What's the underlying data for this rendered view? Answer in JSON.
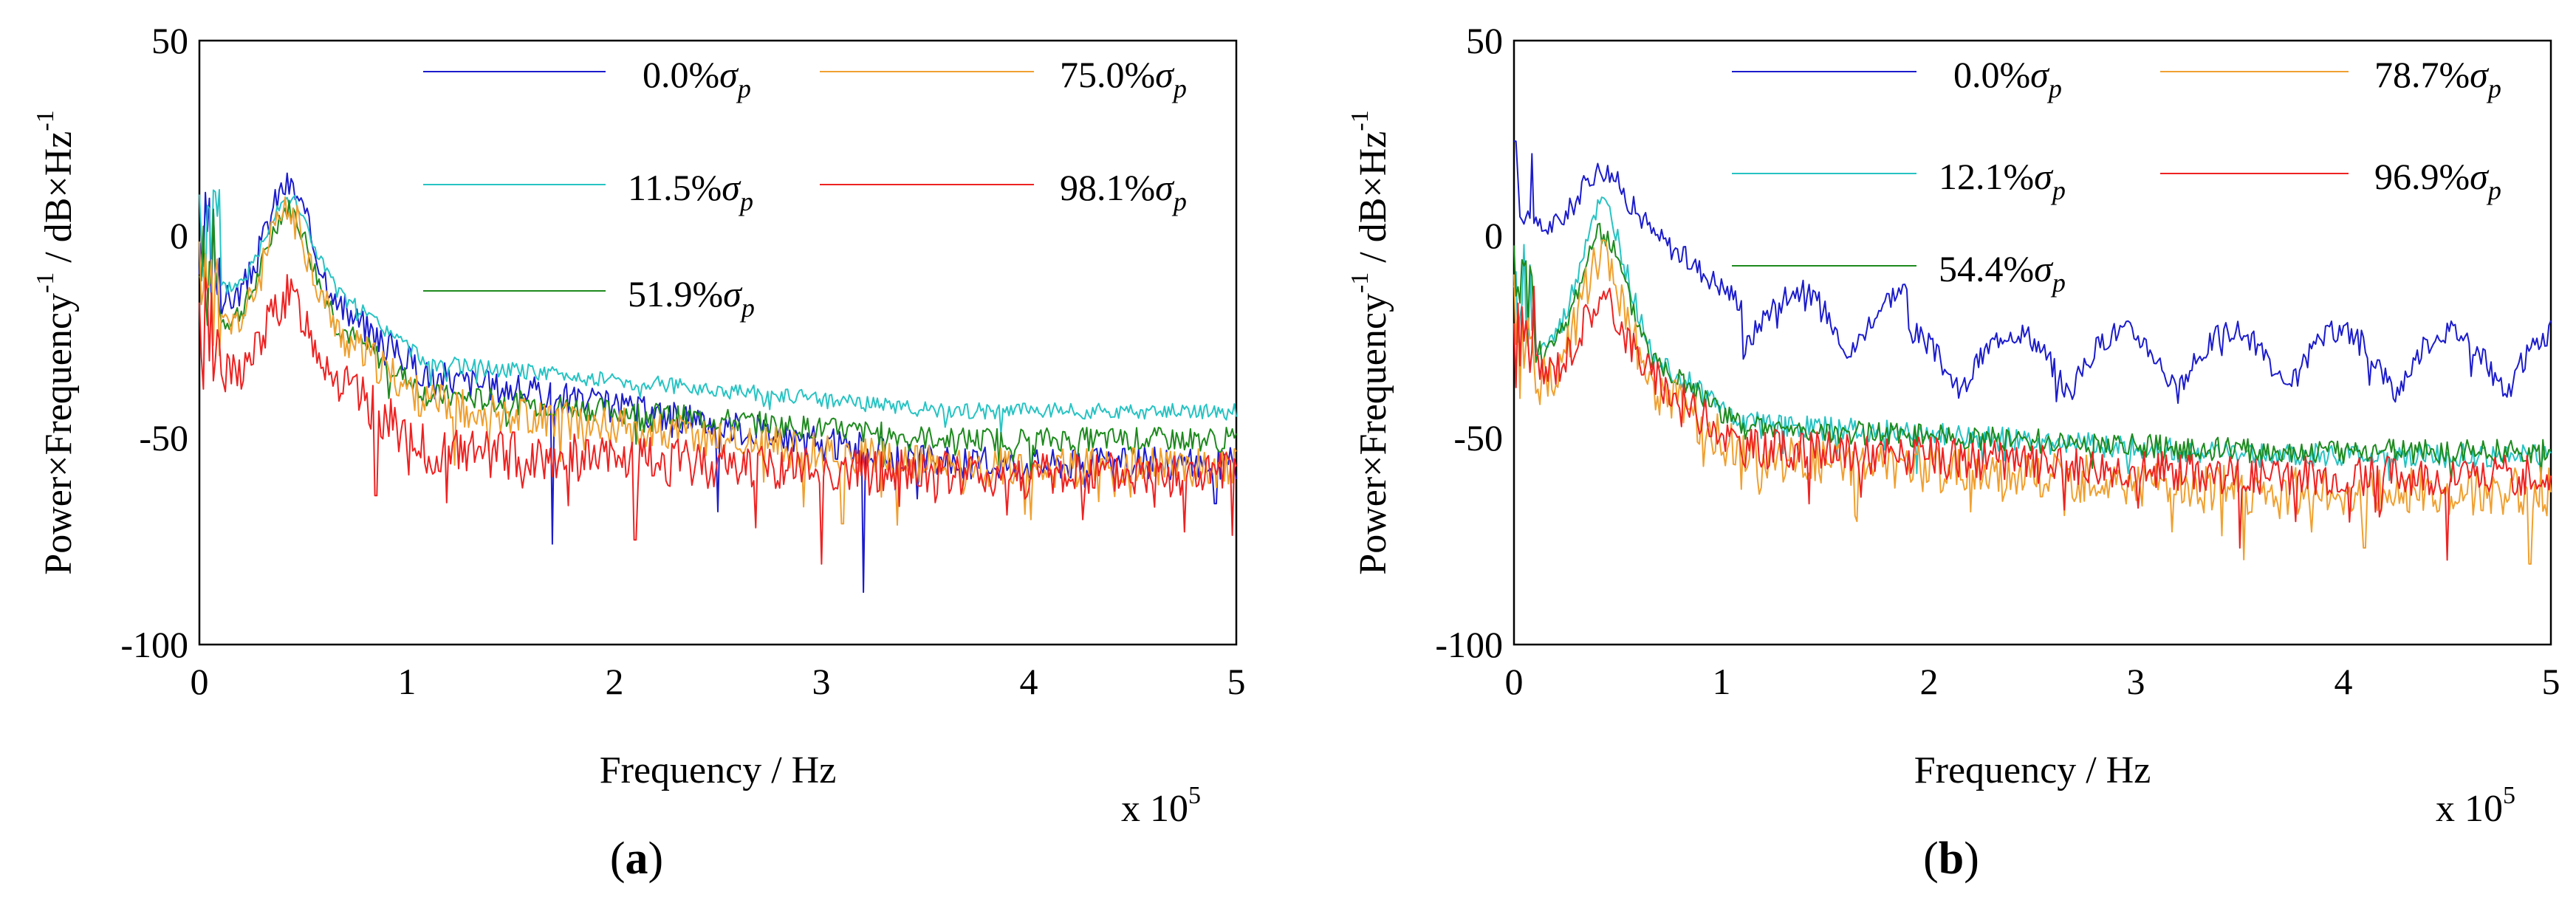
{
  "chart_data": [
    {
      "type": "line",
      "panel_label": "a",
      "xlabel": "Frequency / Hz",
      "ylabel": "Power×Frequency",
      "ylabel_exp": "-1",
      "ylabel_unit": " / dB×Hz",
      "ylabel_unit_exp": "-1",
      "x_multiplier_text": "x 10",
      "x_multiplier_exp": "5",
      "xlim": [
        0,
        500000
      ],
      "ylim": [
        -100,
        50
      ],
      "xticks": [
        "0",
        "1",
        "2",
        "3",
        "4",
        "5"
      ],
      "yticks": [
        "50",
        "0",
        "-50",
        "-100"
      ],
      "legend_position": "top-right",
      "legend_symbol": "σ",
      "legend_subscript": "p",
      "series": [
        {
          "name": "0.0%",
          "color": "#1c1ccc",
          "peak": 14,
          "mid": -33,
          "tail": -55,
          "noise": 4,
          "spikes": [
            [
              0.34,
              -75
            ],
            [
              0.5,
              -67
            ],
            [
              0.64,
              -87
            ],
            [
              0.98,
              -65
            ]
          ],
          "arches": false,
          "seed": 3
        },
        {
          "name": "11.5%",
          "color": "#28c3c3",
          "peak": 11,
          "mid": -30,
          "tail": -42,
          "noise": 2,
          "spikes": [],
          "arches": false,
          "seed": 5
        },
        {
          "name": "51.9%",
          "color": "#1e8a1e",
          "peak": 8,
          "mid": -38,
          "tail": -49,
          "noise": 3,
          "spikes": [],
          "arches": false,
          "seed": 7
        },
        {
          "name": "75.0%",
          "color": "#f0a030",
          "peak": 7,
          "mid": -40,
          "tail": -56,
          "noise": 5,
          "spikes": [
            [
              0.62,
              -70
            ]
          ],
          "arches": false,
          "seed": 11
        },
        {
          "name": "98.1%",
          "color": "#ee2222",
          "peak": -14,
          "mid": -52,
          "tail": -58,
          "noise": 6,
          "spikes": [
            [
              0.17,
              -63
            ],
            [
              0.42,
              -74
            ],
            [
              0.6,
              -80
            ],
            [
              0.95,
              -72
            ]
          ],
          "arches": false,
          "seed": 13
        }
      ]
    },
    {
      "type": "line",
      "panel_label": "b",
      "xlabel": "Frequency / Hz",
      "ylabel": "Power×Frequency",
      "ylabel_exp": "-1",
      "ylabel_unit": " / dB×Hz",
      "ylabel_unit_exp": "-1",
      "x_multiplier_text": "x 10",
      "x_multiplier_exp": "5",
      "xlim": [
        0,
        500000
      ],
      "ylim": [
        -100,
        50
      ],
      "xticks": [
        "0",
        "1",
        "2",
        "3",
        "4",
        "5"
      ],
      "yticks": [
        "50",
        "0",
        "-50",
        "-100"
      ],
      "legend_position": "top-right",
      "legend_symbol": "σ",
      "legend_subscript": "p",
      "series": [
        {
          "name": "0.0%",
          "color": "#1c1ccc",
          "peak": 18,
          "mid": -15,
          "tail": -38,
          "noise": 3,
          "spikes": [],
          "arches": true,
          "seed": 17
        },
        {
          "name": "12.1%",
          "color": "#28c3c3",
          "peak": 9,
          "mid": -45,
          "tail": -53,
          "noise": 3,
          "spikes": [],
          "arches": false,
          "seed": 19
        },
        {
          "name": "54.4%",
          "color": "#1e8a1e",
          "peak": 2,
          "mid": -46,
          "tail": -52,
          "noise": 3,
          "spikes": [],
          "arches": false,
          "seed": 23
        },
        {
          "name": "78.7%",
          "color": "#f0a030",
          "peak": -5,
          "mid": -53,
          "tail": -62,
          "noise": 6,
          "spikes": [
            [
              0.82,
              -76
            ],
            [
              0.98,
              -80
            ]
          ],
          "arches": false,
          "seed": 29
        },
        {
          "name": "96.9%",
          "color": "#ee2222",
          "peak": -15,
          "mid": -51,
          "tail": -58,
          "noise": 5,
          "spikes": [
            [
              0.7,
              -76
            ],
            [
              0.9,
              -79
            ]
          ],
          "arches": false,
          "seed": 31
        }
      ]
    }
  ]
}
